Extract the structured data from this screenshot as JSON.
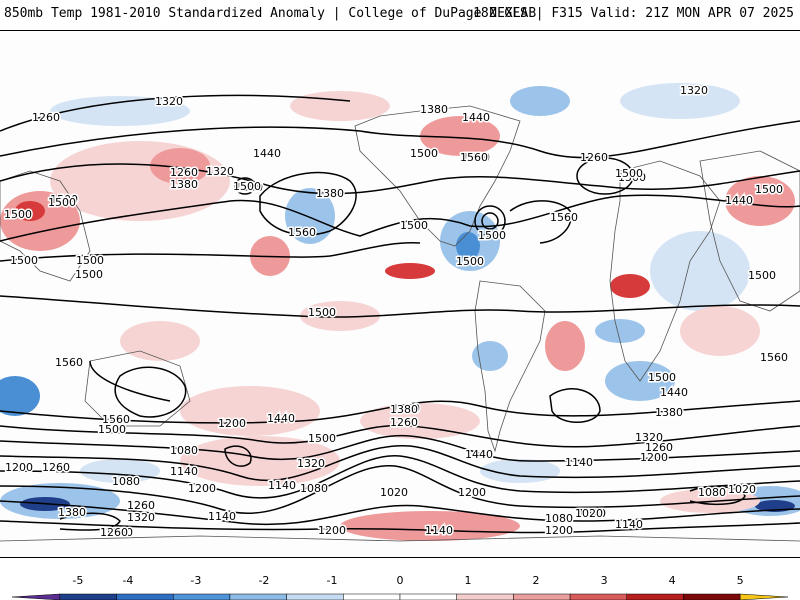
{
  "header": {
    "left_title": "850mb Temp 1981-2010 Standardized Anomaly | College of DuPage NEXLAB",
    "right_title": "18Z GFS | F315 Valid: 21Z MON APR 07 2025"
  },
  "map": {
    "contour_labels": [
      "1320",
      "1260",
      "1380",
      "1440",
      "1500",
      "1560",
      "1320",
      "1260",
      "1500",
      "1500",
      "1560",
      "1500",
      "1500",
      "1500",
      "1260",
      "1380",
      "1440",
      "1320",
      "1500",
      "1380",
      "1560",
      "1500",
      "1500",
      "1500",
      "1500",
      "1560",
      "1500",
      "1440",
      "1500",
      "1500",
      "1500",
      "1500",
      "1500",
      "1560",
      "1560",
      "1500",
      "1440",
      "1380",
      "1440",
      "1500",
      "1560",
      "1500",
      "1380",
      "1260",
      "1440",
      "1320",
      "1260",
      "1200",
      "1080",
      "1200",
      "1140",
      "1080",
      "1020",
      "1200",
      "1140",
      "1260",
      "1200",
      "1140",
      "1080",
      "1260",
      "1320",
      "1380",
      "1200",
      "1260",
      "1320",
      "1380",
      "1140",
      "1020",
      "1080",
      "1020",
      "1140",
      "1200",
      "1140",
      "1200",
      "1260",
      "1080",
      "1020"
    ],
    "colors": {
      "positive_light": "#f7d4d4",
      "positive_mid": "#ee9a9a",
      "positive_strong": "#d63a3a",
      "negative_light": "#d4e4f4",
      "negative_mid": "#9cc4ea",
      "negative_strong": "#4a8fd4",
      "contour": "#000000"
    }
  },
  "colorbar": {
    "tick_labels": [
      "-5",
      "-4",
      "-3",
      "-2",
      "-1",
      "0",
      "1",
      "2",
      "3",
      "4",
      "5"
    ],
    "segments": [
      {
        "color": "#5a2d91"
      },
      {
        "color": "#1f3f8a"
      },
      {
        "color": "#2f6fc2"
      },
      {
        "color": "#4f93d8"
      },
      {
        "color": "#8cbbe6"
      },
      {
        "color": "#c4dcf2"
      },
      {
        "color": "#ffffff"
      },
      {
        "color": "#ffffff"
      },
      {
        "color": "#f3cccc"
      },
      {
        "color": "#ea9e9e"
      },
      {
        "color": "#d95c5c"
      },
      {
        "color": "#b81f1f"
      },
      {
        "color": "#7d0a0a"
      },
      {
        "color": "#f5c518"
      }
    ]
  }
}
